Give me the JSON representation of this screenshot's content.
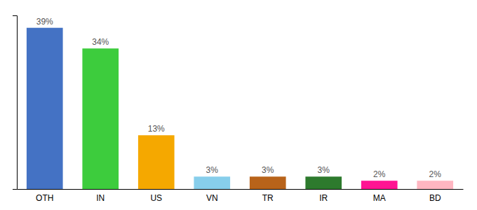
{
  "chart_data": {
    "type": "bar",
    "categories": [
      "OTH",
      "IN",
      "US",
      "VN",
      "TR",
      "IR",
      "MA",
      "BD"
    ],
    "values": [
      39,
      34,
      13,
      3,
      3,
      3,
      2,
      2
    ],
    "value_labels": [
      "39%",
      "34%",
      "13%",
      "3%",
      "3%",
      "3%",
      "2%",
      "2%"
    ],
    "colors": [
      "#4472c4",
      "#3dcc3d",
      "#f5a800",
      "#87ceeb",
      "#b8631a",
      "#2d7a2d",
      "#ff1493",
      "#ffb6c1"
    ],
    "ylim": [
      0,
      42
    ],
    "yticks": [],
    "grid": false,
    "data_labels": true,
    "tick_labels": "x"
  }
}
